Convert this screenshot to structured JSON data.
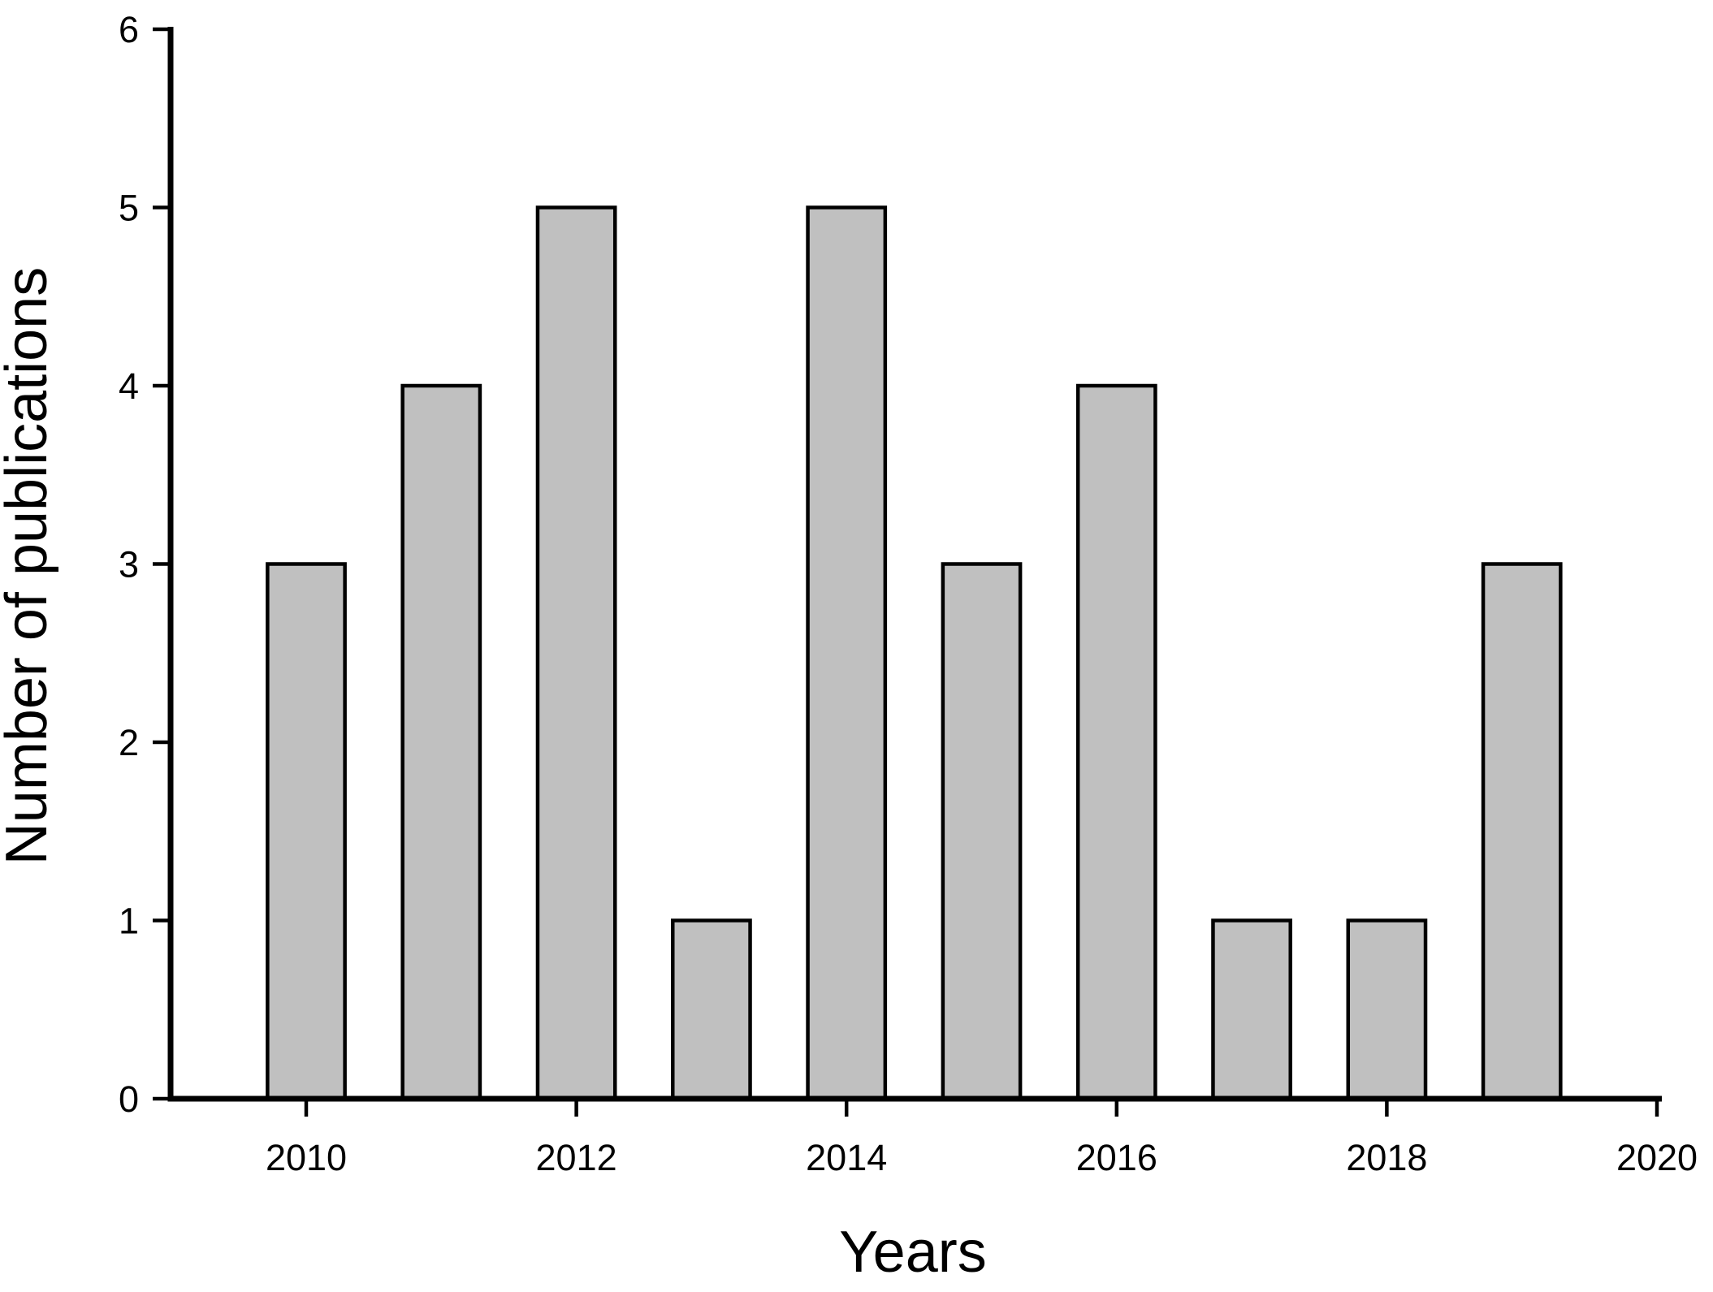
{
  "figure": {
    "background_color": "#ffffff"
  },
  "chart_data": {
    "type": "bar",
    "title": "",
    "xlabel": "Years",
    "ylabel": "Number of publications",
    "categories": [
      2010,
      2011,
      2012,
      2013,
      2014,
      2015,
      2016,
      2017,
      2018,
      2019
    ],
    "values": [
      3,
      4,
      5,
      1,
      5,
      3,
      4,
      1,
      1,
      3
    ],
    "x_tick_labels": [
      "2010",
      "2012",
      "2014",
      "2016",
      "2018",
      "2020"
    ],
    "x_ticks": [
      2010,
      2012,
      2014,
      2016,
      2018,
      2020
    ],
    "y_tick_labels": [
      "0",
      "1",
      "2",
      "3",
      "4",
      "5",
      "6"
    ],
    "y_ticks": [
      0,
      1,
      2,
      3,
      4,
      5,
      6
    ],
    "xlim": [
      2009,
      2020.05
    ],
    "ylim": [
      0,
      6
    ],
    "bar_width_years": 0.6,
    "grid": false,
    "legend": null,
    "bar_fill_color": "#c0c0c0",
    "bar_edge_color": "#000000",
    "axis_color": "#000000",
    "text_color": "#000000"
  }
}
